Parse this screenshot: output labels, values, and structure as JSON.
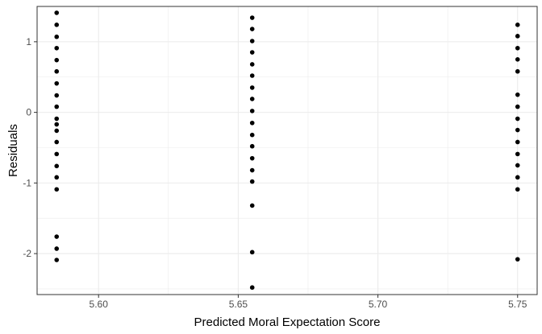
{
  "chart_data": {
    "type": "scatter",
    "title": "",
    "xlabel": "Predicted Moral Expectation Score",
    "ylabel": "Residuals",
    "xlim": [
      5.578,
      5.757
    ],
    "ylim": [
      -2.58,
      1.5
    ],
    "x_ticks": [
      5.6,
      5.65,
      5.7,
      5.75
    ],
    "x_tick_labels": [
      "5.60",
      "5.65",
      "5.70",
      "5.75"
    ],
    "y_ticks": [
      -2,
      -1,
      0,
      1
    ],
    "y_tick_labels": [
      "-2",
      "-1",
      "0",
      "1"
    ],
    "grid": true,
    "legend": "none",
    "point_color": "#000000",
    "series": [
      {
        "x": 5.585,
        "y": [
          1.41,
          1.24,
          1.07,
          0.91,
          0.74,
          0.58,
          0.41,
          0.24,
          0.08,
          -0.09,
          -0.17,
          -0.26,
          -0.42,
          -0.59,
          -0.76,
          -0.92,
          -1.09,
          -1.76,
          -1.93,
          -2.09
        ]
      },
      {
        "x": 5.655,
        "y": [
          1.34,
          1.18,
          1.01,
          0.85,
          0.68,
          0.52,
          0.35,
          0.19,
          0.02,
          -0.15,
          -0.32,
          -0.48,
          -0.65,
          -0.82,
          -0.98,
          -1.32,
          -1.98,
          -2.48
        ]
      },
      {
        "x": 5.75,
        "y": [
          1.24,
          1.08,
          0.91,
          0.75,
          0.58,
          0.25,
          0.08,
          -0.09,
          -0.25,
          -0.42,
          -0.59,
          -0.75,
          -0.92,
          -1.09,
          -2.08
        ]
      }
    ]
  }
}
